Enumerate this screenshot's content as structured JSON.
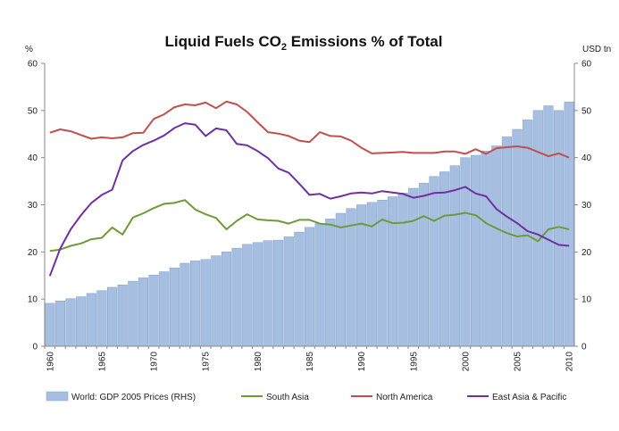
{
  "chart_data": {
    "type": "bar+line",
    "title": {
      "main": "Liquid Fuels CO",
      "sub": "2",
      "rest": " Emissions % of Total"
    },
    "left_unit": "%",
    "right_unit": "USD tn",
    "ylim_left": [
      0,
      60
    ],
    "ylim_right": [
      0,
      60
    ],
    "yticks": [
      "0",
      "10",
      "20",
      "30",
      "40",
      "50",
      "60"
    ],
    "x_tick_labels": [
      "1960",
      "1965",
      "1970",
      "1975",
      "1980",
      "1985",
      "1990",
      "1995",
      "2000",
      "2005",
      "2010"
    ],
    "years": [
      1960,
      1961,
      1962,
      1963,
      1964,
      1965,
      1966,
      1967,
      1968,
      1969,
      1970,
      1971,
      1972,
      1973,
      1974,
      1975,
      1976,
      1977,
      1978,
      1979,
      1980,
      1981,
      1982,
      1983,
      1984,
      1985,
      1986,
      1987,
      1988,
      1989,
      1990,
      1991,
      1992,
      1993,
      1994,
      1995,
      1996,
      1997,
      1998,
      1999,
      2000,
      2001,
      2002,
      2003,
      2004,
      2005,
      2006,
      2007,
      2008,
      2009,
      2010
    ],
    "grid": false,
    "legend_position": "bottom",
    "series": [
      {
        "name": "World: GDP 2005 Prices (RHS)",
        "kind": "bar",
        "axis": "right",
        "color": "#a6bfe0",
        "stroke": "#7f9fcb",
        "values": [
          9.1,
          9.6,
          10.1,
          10.5,
          11.2,
          11.8,
          12.5,
          13.0,
          13.8,
          14.5,
          15.1,
          15.8,
          16.6,
          17.6,
          18.1,
          18.4,
          19.2,
          20.0,
          20.8,
          21.6,
          22.0,
          22.4,
          22.5,
          23.2,
          24.2,
          25.2,
          26.0,
          27.0,
          28.2,
          29.2,
          30.0,
          30.5,
          31.0,
          31.7,
          32.5,
          33.5,
          34.6,
          36.0,
          37.0,
          38.3,
          40.0,
          40.5,
          41.4,
          42.5,
          44.4,
          46.0,
          48.0,
          50.0,
          51.0,
          50.0,
          51.8
        ]
      },
      {
        "name": "South Asia",
        "kind": "line",
        "axis": "left",
        "color": "#6e9a3a",
        "values": [
          20.2,
          20.5,
          21.3,
          21.8,
          22.7,
          23.0,
          25.2,
          23.7,
          27.3,
          28.2,
          29.3,
          30.2,
          30.4,
          31.0,
          29.0,
          28.0,
          27.2,
          24.8,
          26.6,
          28.0,
          26.9,
          26.7,
          26.6,
          26.0,
          26.8,
          26.8,
          26.0,
          25.8,
          25.2,
          25.6,
          26.0,
          25.4,
          26.9,
          26.1,
          26.2,
          26.6,
          27.6,
          26.6,
          27.7,
          27.9,
          28.3,
          27.8,
          26.1,
          25.0,
          24.0,
          23.3,
          23.5,
          22.3,
          24.8,
          25.3,
          24.8
        ]
      },
      {
        "name": "North America",
        "kind": "line",
        "axis": "left",
        "color": "#c0504d",
        "values": [
          45.3,
          46.0,
          45.6,
          44.8,
          44.0,
          44.3,
          44.1,
          44.3,
          45.2,
          45.3,
          48.2,
          49.2,
          50.7,
          51.3,
          51.1,
          51.7,
          50.5,
          51.9,
          51.3,
          49.7,
          47.5,
          45.4,
          45.1,
          44.6,
          43.6,
          43.3,
          45.4,
          44.6,
          44.5,
          43.6,
          42.1,
          40.9,
          41.0,
          41.1,
          41.2,
          41.0,
          41.0,
          41.0,
          41.3,
          41.3,
          40.8,
          41.8,
          40.8,
          42.0,
          42.2,
          42.4,
          42.1,
          41.2,
          40.3,
          40.9,
          40.0
        ]
      },
      {
        "name": "East Asia & Pacific",
        "kind": "line",
        "axis": "left",
        "color": "#7030a0",
        "values": [
          14.9,
          20.7,
          24.8,
          27.8,
          30.4,
          32.1,
          33.2,
          39.4,
          41.4,
          42.7,
          43.6,
          44.7,
          46.3,
          47.3,
          47.0,
          44.6,
          46.2,
          45.8,
          42.9,
          42.6,
          41.4,
          39.9,
          37.7,
          36.8,
          34.5,
          32.1,
          32.3,
          31.3,
          31.8,
          32.4,
          32.6,
          32.4,
          32.9,
          32.6,
          32.3,
          31.5,
          31.9,
          32.5,
          32.6,
          33.1,
          33.8,
          32.4,
          31.8,
          29.1,
          27.5,
          26.1,
          24.4,
          23.7,
          22.6,
          21.5,
          21.3
        ]
      }
    ]
  }
}
